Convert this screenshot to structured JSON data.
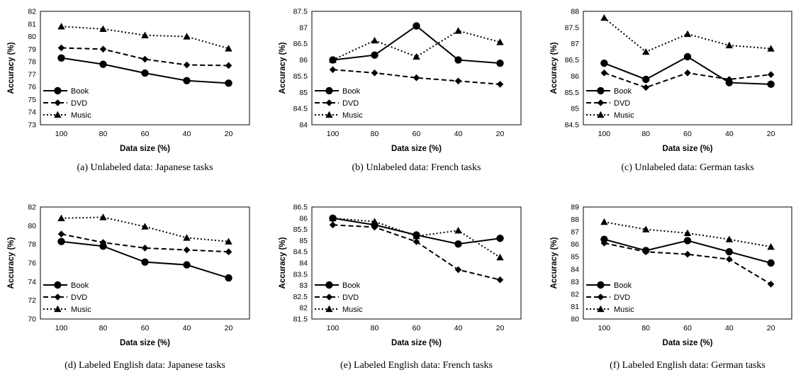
{
  "figure": {
    "xlabel": "Data size (%)",
    "ylabel": "Accuracy (%)"
  },
  "chart_data": [
    {
      "type": "line",
      "caption": "(a)  Unlabeled data: Japanese tasks",
      "title": "",
      "xlabel": "Data size (%)",
      "ylabel": "Accuracy (%)",
      "categories": [
        "100",
        "80",
        "60",
        "40",
        "20"
      ],
      "ylim": [
        73,
        82
      ],
      "yticks": [
        "82",
        "81",
        "80",
        "79",
        "78",
        "77",
        "76",
        "75",
        "74",
        "73"
      ],
      "legend_position": "bottom-left",
      "grid": false,
      "series": [
        {
          "name": "Book",
          "style": "solid",
          "marker": "circle",
          "values": [
            78.3,
            77.8,
            77.1,
            76.5,
            76.3
          ]
        },
        {
          "name": "DVD",
          "style": "dashed",
          "marker": "diamond",
          "values": [
            79.1,
            79.0,
            78.2,
            77.75,
            77.7
          ]
        },
        {
          "name": "Music",
          "style": "dotted",
          "marker": "triangle",
          "values": [
            80.8,
            80.6,
            80.1,
            80.0,
            79.05
          ]
        }
      ]
    },
    {
      "type": "line",
      "caption": "(b)  Unlabeled data: French tasks",
      "title": "",
      "xlabel": "Data size (%)",
      "ylabel": "Accuracy (%)",
      "categories": [
        "100",
        "80",
        "60",
        "40",
        "20"
      ],
      "ylim": [
        84,
        87.5
      ],
      "yticks": [
        "87.5",
        "87",
        "86.5",
        "86",
        "85.5",
        "85",
        "84.5",
        "84"
      ],
      "legend_position": "bottom-left",
      "grid": false,
      "series": [
        {
          "name": "Book",
          "style": "solid",
          "marker": "circle",
          "values": [
            86.0,
            86.15,
            87.05,
            86.0,
            85.9
          ]
        },
        {
          "name": "DVD",
          "style": "dashed",
          "marker": "diamond",
          "values": [
            85.7,
            85.6,
            85.45,
            85.35,
            85.25
          ]
        },
        {
          "name": "Music",
          "style": "dotted",
          "marker": "triangle",
          "values": [
            86.0,
            86.6,
            86.1,
            86.9,
            86.55
          ]
        }
      ]
    },
    {
      "type": "line",
      "caption": "(c)  Unlabeled data: German tasks",
      "title": "",
      "xlabel": "Data size (%)",
      "ylabel": "Accuracy (%)",
      "categories": [
        "100",
        "80",
        "60",
        "40",
        "20"
      ],
      "ylim": [
        84.5,
        88
      ],
      "yticks": [
        "88",
        "87.5",
        "87",
        "86.5",
        "86",
        "85.5",
        "85",
        "84.5"
      ],
      "legend_position": "bottom-left",
      "grid": false,
      "series": [
        {
          "name": "Book",
          "style": "solid",
          "marker": "circle",
          "values": [
            86.4,
            85.9,
            86.6,
            85.8,
            85.75
          ]
        },
        {
          "name": "DVD",
          "style": "dashed",
          "marker": "diamond",
          "values": [
            86.1,
            85.65,
            86.1,
            85.9,
            86.05
          ]
        },
        {
          "name": "Music",
          "style": "dotted",
          "marker": "triangle",
          "values": [
            87.8,
            86.75,
            87.3,
            86.95,
            86.85
          ]
        }
      ]
    },
    {
      "type": "line",
      "caption": "(d)  Labeled English data: Japanese tasks",
      "title": "",
      "xlabel": "Data size (%)",
      "ylabel": "Accuracy (%)",
      "categories": [
        "100",
        "80",
        "60",
        "40",
        "20"
      ],
      "ylim": [
        70,
        82
      ],
      "yticks": [
        "82",
        "80",
        "78",
        "76",
        "74",
        "72",
        "70"
      ],
      "legend_position": "bottom-left",
      "grid": false,
      "series": [
        {
          "name": "Book",
          "style": "solid",
          "marker": "circle",
          "values": [
            78.3,
            77.8,
            76.1,
            75.8,
            74.4
          ]
        },
        {
          "name": "DVD",
          "style": "dashed",
          "marker": "diamond",
          "values": [
            79.1,
            78.2,
            77.6,
            77.4,
            77.2
          ]
        },
        {
          "name": "Music",
          "style": "dotted",
          "marker": "triangle",
          "values": [
            80.8,
            80.9,
            79.9,
            78.7,
            78.3
          ]
        }
      ]
    },
    {
      "type": "line",
      "caption": "(e)  Labeled English data: French tasks",
      "title": "",
      "xlabel": "Data size (%)",
      "ylabel": "Accuracy (%)",
      "categories": [
        "100",
        "80",
        "60",
        "40",
        "20"
      ],
      "ylim": [
        81.5,
        86.5
      ],
      "yticks": [
        "86.5",
        "86",
        "85.5",
        "85",
        "84.5",
        "84",
        "83.5",
        "83",
        "82.5",
        "82",
        "81.5"
      ],
      "legend_position": "bottom-left",
      "grid": false,
      "series": [
        {
          "name": "Book",
          "style": "solid",
          "marker": "circle",
          "values": [
            86.0,
            85.7,
            85.25,
            84.85,
            85.1
          ]
        },
        {
          "name": "DVD",
          "style": "dashed",
          "marker": "diamond",
          "values": [
            85.7,
            85.6,
            84.95,
            83.7,
            83.25
          ]
        },
        {
          "name": "Music",
          "style": "dotted",
          "marker": "triangle",
          "values": [
            86.0,
            85.85,
            85.2,
            85.45,
            84.25
          ]
        }
      ]
    },
    {
      "type": "line",
      "caption": "(f)  Labeled English data: German tasks",
      "title": "",
      "xlabel": "Data size (%)",
      "ylabel": "Accuracy (%)",
      "categories": [
        "100",
        "80",
        "60",
        "40",
        "20"
      ],
      "ylim": [
        80,
        89
      ],
      "yticks": [
        "89",
        "88",
        "87",
        "86",
        "85",
        "84",
        "83",
        "82",
        "81",
        "80"
      ],
      "legend_position": "bottom-left",
      "grid": false,
      "series": [
        {
          "name": "Book",
          "style": "solid",
          "marker": "circle",
          "values": [
            86.4,
            85.5,
            86.3,
            85.4,
            84.5
          ]
        },
        {
          "name": "DVD",
          "style": "dashed",
          "marker": "diamond",
          "values": [
            86.1,
            85.4,
            85.2,
            84.8,
            82.8
          ]
        },
        {
          "name": "Music",
          "style": "dotted",
          "marker": "triangle",
          "values": [
            87.8,
            87.2,
            86.9,
            86.4,
            85.8
          ]
        }
      ]
    }
  ]
}
